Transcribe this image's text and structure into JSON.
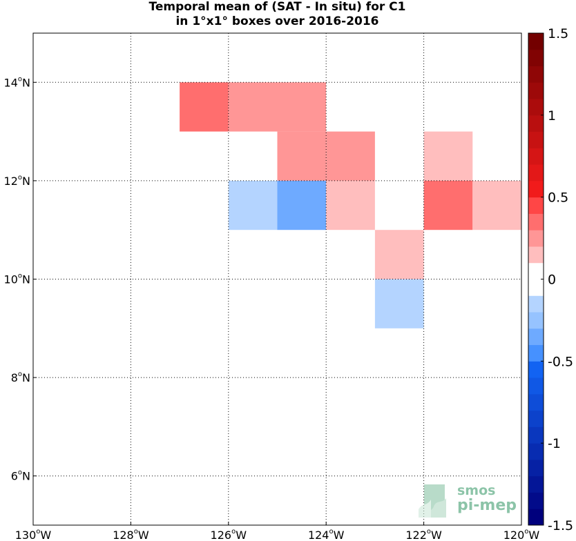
{
  "title_line1": "Temporal mean of (SAT - In situ) for C1",
  "title_line2": "in 1°x1° boxes over 2016-2016",
  "map": {
    "lon_range": [
      -130,
      -120
    ],
    "lat_range": [
      5,
      15
    ],
    "x_ticks": [
      {
        "value": -130,
        "label": "130",
        "hemi": "W"
      },
      {
        "value": -128,
        "label": "128",
        "hemi": "W"
      },
      {
        "value": -126,
        "label": "126",
        "hemi": "W"
      },
      {
        "value": -124,
        "label": "124",
        "hemi": "W"
      },
      {
        "value": -122,
        "label": "122",
        "hemi": "W"
      },
      {
        "value": -120,
        "label": "120",
        "hemi": "W"
      }
    ],
    "y_ticks": [
      {
        "value": 6,
        "label": "6",
        "hemi": "N"
      },
      {
        "value": 8,
        "label": "8",
        "hemi": "N"
      },
      {
        "value": 10,
        "label": "10",
        "hemi": "N"
      },
      {
        "value": 12,
        "label": "12",
        "hemi": "N"
      },
      {
        "value": 14,
        "label": "14",
        "hemi": "N"
      }
    ],
    "degree_symbol": "o",
    "grid": true,
    "grid_style": "dotted"
  },
  "chart_data": {
    "type": "heatmap",
    "cell_size_deg": 1,
    "cells": [
      {
        "lon": -127,
        "lat": 13,
        "value": 0.4
      },
      {
        "lon": -126,
        "lat": 13,
        "value": 0.25
      },
      {
        "lon": -125,
        "lat": 13,
        "value": 0.25
      },
      {
        "lon": -125,
        "lat": 12,
        "value": 0.3
      },
      {
        "lon": -124,
        "lat": 12,
        "value": 0.3
      },
      {
        "lon": -122,
        "lat": 12,
        "value": 0.15
      },
      {
        "lon": -126,
        "lat": 11,
        "value": -0.15
      },
      {
        "lon": -125,
        "lat": 11,
        "value": -0.35
      },
      {
        "lon": -124,
        "lat": 11,
        "value": 0.15
      },
      {
        "lon": -122,
        "lat": 11,
        "value": 0.4
      },
      {
        "lon": -121,
        "lat": 11,
        "value": 0.15
      },
      {
        "lon": -123,
        "lat": 10,
        "value": 0.2
      },
      {
        "lon": -123,
        "lat": 9,
        "value": -0.15
      }
    ]
  },
  "colorbar": {
    "range": [
      -1.5,
      1.5
    ],
    "bin_width": 0.1,
    "ticks": [
      {
        "value": 1.5,
        "label": "1.5"
      },
      {
        "value": 1,
        "label": "1"
      },
      {
        "value": 0.5,
        "label": "0.5"
      },
      {
        "value": 0,
        "label": "0"
      },
      {
        "value": -0.5,
        "label": "-0.5"
      },
      {
        "value": -1,
        "label": "-1"
      },
      {
        "value": -1.5,
        "label": "-1.5"
      }
    ]
  },
  "logo": {
    "line1": "smos",
    "line2": "pi-mep",
    "color": "#5fae8a"
  }
}
